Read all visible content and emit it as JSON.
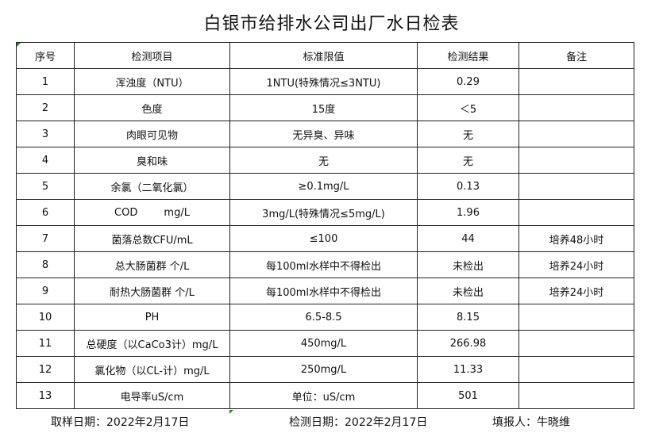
{
  "title": "白银市给排水公司出厂水日检表",
  "headers": [
    "序号",
    "检测项目",
    "标准限值",
    "检测结果",
    "备注"
  ],
  "rows": [
    [
      "1",
      "浑浊度（NTU）",
      "1NTU(特殊情况≤3NTU)",
      "0.29",
      ""
    ],
    [
      "2",
      "色度",
      "15度",
      "＜5",
      ""
    ],
    [
      "3",
      "肉眼可见物",
      "无异臭、异味",
      "无",
      ""
    ],
    [
      "4",
      "臭和味",
      "无",
      "无",
      ""
    ],
    [
      "5",
      "余氯（二氧化氯）",
      "≥0.1mg/L",
      "0.13",
      ""
    ],
    [
      "6",
      "COD        mg/L",
      "3mg/L(特殊情况≤5mg/L)",
      "1.96",
      ""
    ],
    [
      "7",
      "菌落总数CFU/mL",
      "≤100",
      "44",
      "培养48小时"
    ],
    [
      "8",
      "总大肠菌群 个/L",
      "每100ml水样中不得检出",
      "未检出",
      "培养24小时"
    ],
    [
      "9",
      "耐热大肠菌群 个/L",
      "每100ml水样中不得检出",
      "未检出",
      "培养24小时"
    ],
    [
      "10",
      "PH",
      "6.5-8.5",
      "8.15",
      ""
    ],
    [
      "11",
      "总硬度（以CaCo3计）mg/L",
      "450mg/L",
      "266.98",
      ""
    ],
    [
      "12",
      "氯化物（以CL-计）mg/L",
      "250mg/L",
      "11.33",
      ""
    ],
    [
      "13",
      "电导率uS/cm",
      "单位：uS/cm",
      "501",
      ""
    ]
  ],
  "footer": {
    "sampling_date": "取样日期：2022年2月17日",
    "test_date": "检测日期：2022年2月17日",
    "filled_by": "填报人：牛晓维"
  }
}
